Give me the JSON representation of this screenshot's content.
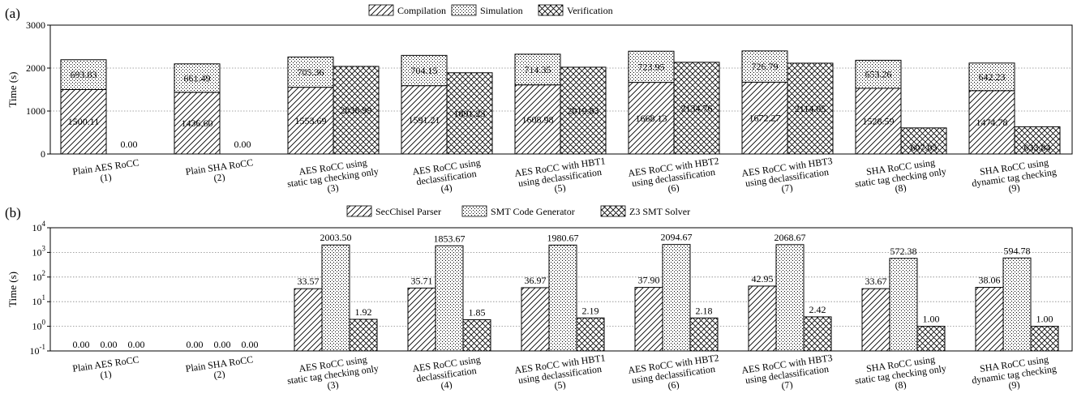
{
  "chart_data": [
    {
      "panel": "(a)",
      "type": "bar",
      "stacked_group": "Compilation+Simulation stacked, Verification separate",
      "categories": [
        [
          "Plain AES RoCC",
          "(1)"
        ],
        [
          "Plain SHA RoCC",
          "(2)"
        ],
        [
          "AES RoCC using",
          "static tag checking only",
          "(3)"
        ],
        [
          "AES RoCC using",
          "declassification",
          "(4)"
        ],
        [
          "AES RoCC with HBT1",
          "using declassification",
          "(5)"
        ],
        [
          "AES RoCC with HBT2",
          "using declassification",
          "(6)"
        ],
        [
          "AES RoCC with HBT3",
          "using declassification",
          "(7)"
        ],
        [
          "SHA RoCC using",
          "static tag checking only",
          "(8)"
        ],
        [
          "SHA RoCC using",
          "dynamic tag checking",
          "(9)"
        ]
      ],
      "series": [
        {
          "name": "Compilation",
          "pattern": "hatch",
          "values": [
            1500.11,
            1436.6,
            1553.69,
            1591.21,
            1608.98,
            1668.13,
            1672.27,
            1528.59,
            1474.78
          ],
          "labels": [
            "1500.11",
            "1436.60",
            "1553.69",
            "1591.21",
            "1608.98",
            "1668.13",
            "1672.27",
            "1528.59",
            "1474.78"
          ]
        },
        {
          "name": "Simulation",
          "pattern": "dots",
          "values": [
            693.83,
            661.49,
            705.36,
            704.15,
            714.35,
            723.95,
            726.79,
            653.26,
            642.23
          ],
          "labels": [
            "693.83",
            "661.49",
            "705.36",
            "704.15",
            "714.35",
            "723.95",
            "726.79",
            "653.26",
            "642.23"
          ]
        },
        {
          "name": "Verification",
          "pattern": "cross",
          "values": [
            0.0,
            0.0,
            2038.99,
            1891.23,
            2019.83,
            2134.76,
            2114.05,
            607.05,
            633.84
          ],
          "labels": [
            "0.00",
            "0.00",
            "2038.99",
            "1891.23",
            "2019.83",
            "2134.76",
            "2114.05",
            "607.05",
            "633.84"
          ]
        }
      ],
      "ylabel": "Time (s)",
      "ylim": [
        0,
        3000
      ],
      "yticks": [
        "0",
        "1000",
        "2000",
        "3000"
      ],
      "grid": true,
      "legend_placement": "top-center"
    },
    {
      "panel": "(b)",
      "type": "bar",
      "yscale": "log",
      "categories": [
        [
          "Plain AES RoCC",
          "(1)"
        ],
        [
          "Plain SHA RoCC",
          "(2)"
        ],
        [
          "AES RoCC using",
          "static tag checking only",
          "(3)"
        ],
        [
          "AES RoCC using",
          "declassification",
          "(4)"
        ],
        [
          "AES RoCC with HBT1",
          "using declassification",
          "(5)"
        ],
        [
          "AES RoCC with HBT2",
          "using declassification",
          "(6)"
        ],
        [
          "AES RoCC with HBT3",
          "using declassification",
          "(7)"
        ],
        [
          "SHA RoCC using",
          "static tag checking only",
          "(8)"
        ],
        [
          "SHA RoCC using",
          "dynamic tag checking",
          "(9)"
        ]
      ],
      "series": [
        {
          "name": "SecChisel Parser",
          "pattern": "hatch",
          "values": [
            0.0,
            0.0,
            33.57,
            35.71,
            36.97,
            37.9,
            42.95,
            33.67,
            38.06
          ],
          "labels": [
            "0.00",
            "0.00",
            "33.57",
            "35.71",
            "36.97",
            "37.90",
            "42.95",
            "33.67",
            "38.06"
          ]
        },
        {
          "name": "SMT Code Generator",
          "pattern": "dots",
          "values": [
            0.0,
            0.0,
            2003.5,
            1853.67,
            1980.67,
            2094.67,
            2068.67,
            572.38,
            594.78
          ],
          "labels": [
            "0.00",
            "0.00",
            "2003.50",
            "1853.67",
            "1980.67",
            "2094.67",
            "2068.67",
            "572.38",
            "594.78"
          ]
        },
        {
          "name": "Z3 SMT Solver",
          "pattern": "cross",
          "values": [
            0.0,
            0.0,
            1.92,
            1.85,
            2.19,
            2.18,
            2.42,
            1.0,
            1.0
          ],
          "labels": [
            "0.00",
            "0.00",
            "1.92",
            "1.85",
            "2.19",
            "2.18",
            "2.42",
            "1.00",
            "1.00"
          ]
        }
      ],
      "ylabel": "Time (s)",
      "ylim": [
        0.1,
        10000
      ],
      "yticks": [
        {
          "base": "10",
          "exp": "-1"
        },
        {
          "base": "10",
          "exp": "0"
        },
        {
          "base": "10",
          "exp": "1"
        },
        {
          "base": "10",
          "exp": "2"
        },
        {
          "base": "10",
          "exp": "3"
        },
        {
          "base": "10",
          "exp": "4"
        }
      ],
      "grid": true,
      "legend_placement": "top-center"
    }
  ]
}
